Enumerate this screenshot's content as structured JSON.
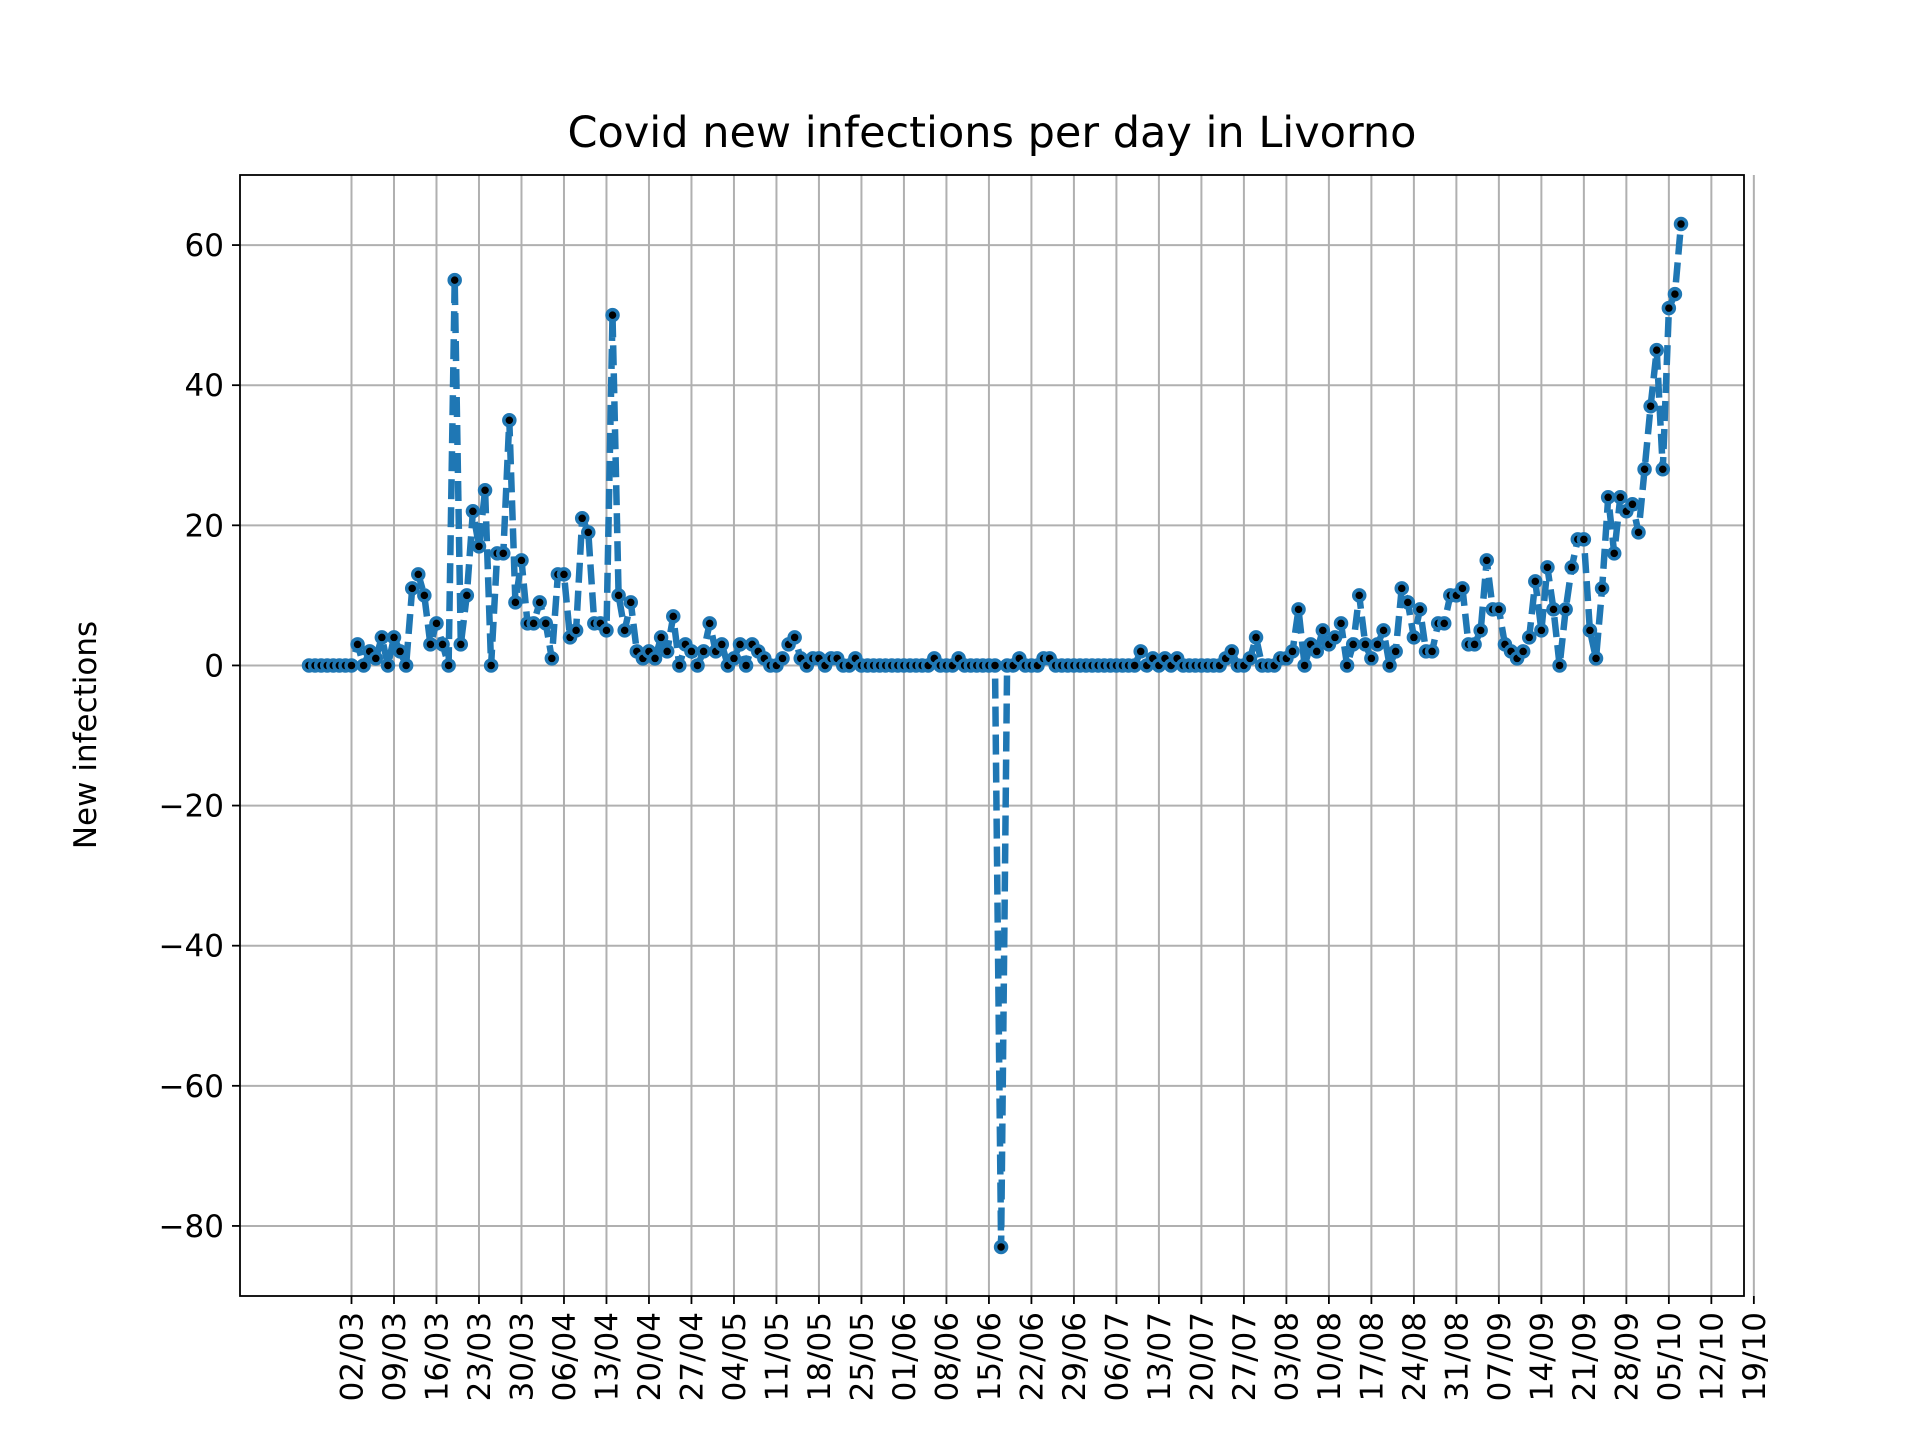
{
  "chart_data": {
    "type": "line",
    "title": "Covid new infections per day in Livorno",
    "xlabel": "",
    "ylabel": "New infections",
    "ylim": [
      -90,
      70
    ],
    "yticks": [
      -80,
      -60,
      -40,
      -20,
      0,
      20,
      40,
      60
    ],
    "ytick_labels": [
      "−80",
      "−60",
      "−40",
      "−20",
      "0",
      "20",
      "40",
      "60"
    ],
    "x_start": "24/02",
    "xtick_labels": [
      "02/03",
      "09/03",
      "16/03",
      "23/03",
      "30/03",
      "06/04",
      "13/04",
      "20/04",
      "27/04",
      "04/05",
      "11/05",
      "18/05",
      "25/05",
      "01/06",
      "08/06",
      "15/06",
      "22/06",
      "29/06",
      "06/07",
      "13/07",
      "20/07",
      "27/07",
      "03/08",
      "10/08",
      "17/08",
      "24/08",
      "31/08",
      "07/09",
      "14/09",
      "21/09",
      "28/09",
      "05/10",
      "12/10",
      "19/10"
    ],
    "grid": true,
    "line_style": "dashed",
    "marker": "dot",
    "series": [
      {
        "color": "#1f77b4",
        "marker_color": "#000000",
        "values": [
          0,
          0,
          0,
          0,
          0,
          0,
          0,
          0,
          3,
          0,
          2,
          1,
          4,
          0,
          4,
          2,
          0,
          11,
          13,
          10,
          3,
          6,
          3,
          0,
          55,
          3,
          10,
          22,
          17,
          25,
          0,
          16,
          16,
          35,
          9,
          15,
          6,
          6,
          9,
          6,
          1,
          13,
          13,
          4,
          5,
          21,
          19,
          6,
          6,
          5,
          50,
          10,
          5,
          9,
          2,
          1,
          2,
          1,
          4,
          2,
          7,
          0,
          3,
          2,
          0,
          2,
          6,
          2,
          3,
          0,
          1,
          3,
          0,
          3,
          2,
          1,
          0,
          0,
          1,
          3,
          4,
          1,
          0,
          1,
          1,
          0,
          1,
          1,
          0,
          0,
          1,
          0,
          0,
          0,
          0,
          0,
          0,
          0,
          0,
          0,
          0,
          0,
          0,
          1,
          0,
          0,
          0,
          1,
          0,
          0,
          0,
          0,
          0,
          0,
          -83,
          0,
          0,
          1,
          0,
          0,
          0,
          1,
          1,
          0,
          0,
          0,
          0,
          0,
          0,
          0,
          0,
          0,
          0,
          0,
          0,
          0,
          0,
          2,
          0,
          1,
          0,
          1,
          0,
          1,
          0,
          0,
          0,
          0,
          0,
          0,
          0,
          1,
          2,
          0,
          0,
          1,
          4,
          0,
          0,
          0,
          1,
          1,
          2,
          8,
          0,
          3,
          2,
          5,
          3,
          4,
          6,
          0,
          3,
          10,
          3,
          1,
          3,
          5,
          0,
          2,
          11,
          9,
          4,
          8,
          2,
          2,
          6,
          6,
          10,
          10,
          11,
          3,
          3,
          5,
          15,
          8,
          8,
          3,
          2,
          1,
          2,
          4,
          12,
          5,
          14,
          8,
          0,
          8,
          14,
          18,
          18,
          5,
          1,
          11,
          24,
          16,
          24,
          22,
          23,
          19,
          28,
          37,
          45,
          28,
          51,
          53,
          63
        ]
      }
    ]
  }
}
